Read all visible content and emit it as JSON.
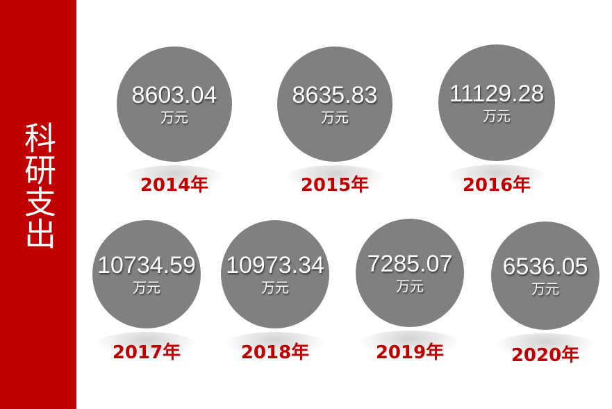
{
  "title": "科研支出",
  "colors": {
    "accent": "#c00000",
    "circle": "#808080"
  },
  "items": [
    {
      "value": "8603.04",
      "unit": "万元",
      "year": "2014年"
    },
    {
      "value": "8635.83",
      "unit": "万元",
      "year": "2015年"
    },
    {
      "value": "11129.28",
      "unit": "万元",
      "year": "2016年"
    },
    {
      "value": "10734.59",
      "unit": "万元",
      "year": "2017年"
    },
    {
      "value": "10973.34",
      "unit": "万元",
      "year": "2018年"
    },
    {
      "value": "7285.07",
      "unit": "万元",
      "year": "2019年"
    },
    {
      "value": "6536.05",
      "unit": "万元",
      "year": "2020年"
    }
  ]
}
